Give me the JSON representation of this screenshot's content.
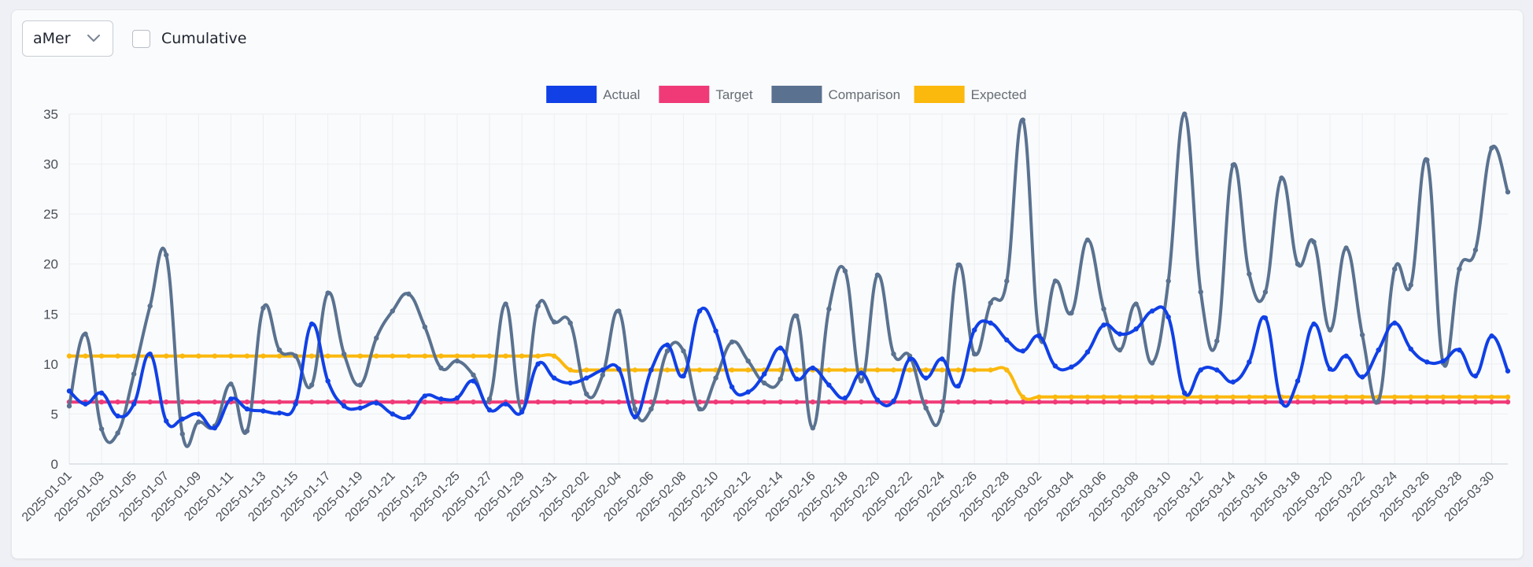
{
  "controls": {
    "select_value": "aMer",
    "select_icon": "chevron-down-icon",
    "cumulative_label": "Cumulative",
    "cumulative_checked": false
  },
  "colors": {
    "actual": "#1040e6",
    "target": "#f03a78",
    "comparison": "#5a7290",
    "expected": "#fbb80d",
    "grid": "#eceef1",
    "tick_text": "#4a4f58"
  },
  "chart_data": {
    "type": "line",
    "title": "",
    "xlabel": "",
    "ylabel": "",
    "ylim": [
      0,
      35
    ],
    "yticks": [
      0,
      5,
      10,
      15,
      20,
      25,
      30,
      35
    ],
    "grid": true,
    "legend_position": "top-center",
    "x_start": "2025-01-01",
    "x": [
      "2025-01-01",
      "2025-01-02",
      "2025-01-03",
      "2025-01-04",
      "2025-01-05",
      "2025-01-06",
      "2025-01-07",
      "2025-01-08",
      "2025-01-09",
      "2025-01-10",
      "2025-01-11",
      "2025-01-12",
      "2025-01-13",
      "2025-01-14",
      "2025-01-15",
      "2025-01-16",
      "2025-01-17",
      "2025-01-18",
      "2025-01-19",
      "2025-01-20",
      "2025-01-21",
      "2025-01-22",
      "2025-01-23",
      "2025-01-24",
      "2025-01-25",
      "2025-01-26",
      "2025-01-27",
      "2025-01-28",
      "2025-01-29",
      "2025-01-30",
      "2025-01-31",
      "2025-02-01",
      "2025-02-02",
      "2025-02-03",
      "2025-02-04",
      "2025-02-05",
      "2025-02-06",
      "2025-02-07",
      "2025-02-08",
      "2025-02-09",
      "2025-02-10",
      "2025-02-11",
      "2025-02-12",
      "2025-02-13",
      "2025-02-14",
      "2025-02-15",
      "2025-02-16",
      "2025-02-17",
      "2025-02-18",
      "2025-02-19",
      "2025-02-20",
      "2025-02-21",
      "2025-02-22",
      "2025-02-23",
      "2025-02-24",
      "2025-02-25",
      "2025-02-26",
      "2025-02-27",
      "2025-02-28",
      "2025-03-01",
      "2025-03-02",
      "2025-03-03",
      "2025-03-04",
      "2025-03-05",
      "2025-03-06",
      "2025-03-07",
      "2025-03-08",
      "2025-03-09",
      "2025-03-10",
      "2025-03-11",
      "2025-03-12",
      "2025-03-13",
      "2025-03-14",
      "2025-03-15",
      "2025-03-16",
      "2025-03-17",
      "2025-03-18",
      "2025-03-19",
      "2025-03-20",
      "2025-03-21",
      "2025-03-22",
      "2025-03-23",
      "2025-03-24",
      "2025-03-25",
      "2025-03-26",
      "2025-03-27",
      "2025-03-28",
      "2025-03-29",
      "2025-03-30",
      "2025-03-31"
    ],
    "xtick_labels": [
      "2025-01-01",
      "2025-01-03",
      "2025-01-05",
      "2025-01-07",
      "2025-01-09",
      "2025-01-11",
      "2025-01-13",
      "2025-01-15",
      "2025-01-17",
      "2025-01-19",
      "2025-01-21",
      "2025-01-23",
      "2025-01-25",
      "2025-01-27",
      "2025-01-29",
      "2025-01-31",
      "2025-02-02",
      "2025-02-04",
      "2025-02-06",
      "2025-02-08",
      "2025-02-10",
      "2025-02-12",
      "2025-02-14",
      "2025-02-16",
      "2025-02-18",
      "2025-02-20",
      "2025-02-22",
      "2025-02-24",
      "2025-02-26",
      "2025-02-28",
      "2025-03-02",
      "2025-03-04",
      "2025-03-06",
      "2025-03-08",
      "2025-03-10",
      "2025-03-12",
      "2025-03-14",
      "2025-03-16",
      "2025-03-18",
      "2025-03-20",
      "2025-03-22",
      "2025-03-24",
      "2025-03-26",
      "2025-03-28",
      "2025-03-30"
    ],
    "series": [
      {
        "name": "Actual",
        "color": "#1040e6",
        "values": [
          7.3,
          6.0,
          7.1,
          4.8,
          6.0,
          11.0,
          4.3,
          4.5,
          5.0,
          3.6,
          6.5,
          5.5,
          5.3,
          5.1,
          6.0,
          14.0,
          8.3,
          5.8,
          5.6,
          6.1,
          5.0,
          4.7,
          6.8,
          6.5,
          6.6,
          8.3,
          5.4,
          6.0,
          5.2,
          10.0,
          8.6,
          8.1,
          8.6,
          9.4,
          9.5,
          4.7,
          9.4,
          11.9,
          8.8,
          15.3,
          13.3,
          7.7,
          7.2,
          9.0,
          11.6,
          8.5,
          9.6,
          7.9,
          6.6,
          9.1,
          6.4,
          6.3,
          10.5,
          8.6,
          10.5,
          7.8,
          13.4,
          14.1,
          12.4,
          11.3,
          12.8,
          9.8,
          9.7,
          11.2,
          13.9,
          13.0,
          13.5,
          15.3,
          14.7,
          7.1,
          9.4,
          9.4,
          8.2,
          10.2,
          14.6,
          6.2,
          8.3,
          14.0,
          9.5,
          10.8,
          8.7,
          11.4,
          14.1,
          11.5,
          10.2,
          10.3,
          11.4,
          8.8,
          12.8,
          9.3
        ]
      },
      {
        "name": "Target",
        "color": "#f03a78",
        "values": [
          6.2,
          6.2,
          6.2,
          6.2,
          6.2,
          6.2,
          6.2,
          6.2,
          6.2,
          6.2,
          6.2,
          6.2,
          6.2,
          6.2,
          6.2,
          6.2,
          6.2,
          6.2,
          6.2,
          6.2,
          6.2,
          6.2,
          6.2,
          6.2,
          6.2,
          6.2,
          6.2,
          6.2,
          6.2,
          6.2,
          6.2,
          6.2,
          6.2,
          6.2,
          6.2,
          6.2,
          6.2,
          6.2,
          6.2,
          6.2,
          6.2,
          6.2,
          6.2,
          6.2,
          6.2,
          6.2,
          6.2,
          6.2,
          6.2,
          6.2,
          6.2,
          6.2,
          6.2,
          6.2,
          6.2,
          6.2,
          6.2,
          6.2,
          6.2,
          6.2,
          6.2,
          6.2,
          6.2,
          6.2,
          6.2,
          6.2,
          6.2,
          6.2,
          6.2,
          6.2,
          6.2,
          6.2,
          6.2,
          6.2,
          6.2,
          6.2,
          6.2,
          6.2,
          6.2,
          6.2,
          6.2,
          6.2,
          6.2,
          6.2,
          6.2,
          6.2,
          6.2,
          6.2,
          6.2,
          6.2
        ]
      },
      {
        "name": "Comparison",
        "color": "#5a7290",
        "values": [
          5.8,
          13.0,
          3.5,
          3.1,
          9.0,
          15.8,
          20.9,
          3.0,
          4.2,
          3.8,
          8.0,
          3.3,
          15.6,
          11.4,
          10.8,
          7.9,
          17.1,
          11.0,
          7.9,
          12.6,
          15.3,
          17.0,
          13.7,
          9.6,
          10.3,
          8.9,
          6.5,
          16.0,
          5.4,
          15.8,
          14.2,
          14.1,
          7.0,
          8.9,
          15.3,
          5.5,
          5.5,
          11.3,
          11.3,
          5.5,
          8.6,
          12.2,
          10.3,
          8.1,
          8.5,
          14.8,
          3.6,
          15.5,
          19.3,
          8.3,
          18.9,
          11.0,
          10.8,
          5.6,
          5.3,
          19.9,
          11.0,
          16.1,
          18.3,
          34.4,
          12.9,
          18.3,
          15.1,
          22.4,
          15.5,
          11.4,
          16.0,
          10.1,
          18.3,
          35.0,
          17.2,
          12.3,
          29.9,
          19.0,
          17.2,
          28.6,
          20.0,
          22.2,
          13.4,
          21.6,
          12.9,
          6.3,
          19.5,
          17.9,
          30.4,
          10.1,
          19.5,
          21.4,
          31.6,
          27.2
        ]
      },
      {
        "name": "Expected",
        "color": "#fbb80d",
        "values": [
          10.8,
          10.8,
          10.8,
          10.8,
          10.8,
          10.8,
          10.8,
          10.8,
          10.8,
          10.8,
          10.8,
          10.8,
          10.8,
          10.8,
          10.8,
          10.8,
          10.8,
          10.8,
          10.8,
          10.8,
          10.8,
          10.8,
          10.8,
          10.8,
          10.8,
          10.8,
          10.8,
          10.8,
          10.8,
          10.8,
          10.8,
          9.4,
          9.4,
          9.4,
          9.4,
          9.4,
          9.4,
          9.4,
          9.4,
          9.4,
          9.4,
          9.4,
          9.4,
          9.4,
          9.4,
          9.4,
          9.4,
          9.4,
          9.4,
          9.4,
          9.4,
          9.4,
          9.4,
          9.4,
          9.4,
          9.4,
          9.4,
          9.4,
          9.4,
          6.7,
          6.7,
          6.7,
          6.7,
          6.7,
          6.7,
          6.7,
          6.7,
          6.7,
          6.7,
          6.7,
          6.7,
          6.7,
          6.7,
          6.7,
          6.7,
          6.7,
          6.7,
          6.7,
          6.7,
          6.7,
          6.7,
          6.7,
          6.7,
          6.7,
          6.7,
          6.7,
          6.7,
          6.7,
          6.7,
          6.7
        ]
      }
    ]
  }
}
